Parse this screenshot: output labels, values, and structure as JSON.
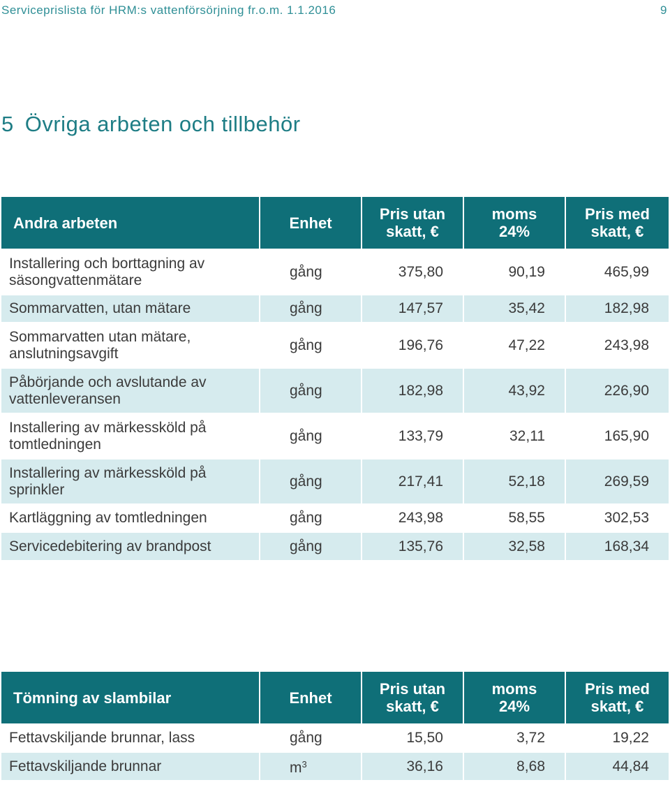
{
  "header": {
    "running_title": "Serviceprislista för HRM:s vattenförsörjning fr.o.m. 1.1.2016",
    "page_number": "9"
  },
  "section": {
    "number": "5",
    "title": "Övriga arbeten och tillbehör"
  },
  "colors": {
    "header_bg": "#0f6f78",
    "row_alt_bg": "#d6ebee",
    "title_color": "#1e7d85"
  },
  "tables": [
    {
      "heading": "Andra arbeten",
      "columns": [
        "Enhet",
        "Pris utan skatt, €",
        "moms 24%",
        "Pris med skatt, €"
      ],
      "rows": [
        {
          "desc": "Installering och borttagning av säsongvattenmätare",
          "unit": "gång",
          "net": "375,80",
          "vat": "90,19",
          "gross": "465,99"
        },
        {
          "desc": "Sommarvatten, utan mätare",
          "unit": "gång",
          "net": "147,57",
          "vat": "35,42",
          "gross": "182,98"
        },
        {
          "desc": "Sommarvatten utan mätare, anslutningsavgift",
          "unit": "gång",
          "net": "196,76",
          "vat": "47,22",
          "gross": "243,98"
        },
        {
          "desc": "Påbörjande och avslutande av vattenleveransen",
          "unit": "gång",
          "net": "182,98",
          "vat": "43,92",
          "gross": "226,90"
        },
        {
          "desc": "Installering av märkessköld på tomtledningen",
          "unit": "gång",
          "net": "133,79",
          "vat": "32,11",
          "gross": "165,90"
        },
        {
          "desc": "Installering av märkessköld på sprinkler",
          "unit": "gång",
          "net": "217,41",
          "vat": "52,18",
          "gross": "269,59"
        },
        {
          "desc": "Kartläggning av tomtledningen",
          "unit": "gång",
          "net": "243,98",
          "vat": "58,55",
          "gross": "302,53"
        },
        {
          "desc": "Servicedebitering av brandpost",
          "unit": "gång",
          "net": "135,76",
          "vat": "32,58",
          "gross": "168,34"
        }
      ]
    },
    {
      "heading": "Tömning av slambilar",
      "columns": [
        "Enhet",
        "Pris utan skatt, €",
        "moms 24%",
        "Pris med skatt, €"
      ],
      "rows": [
        {
          "desc": "Fettavskiljande brunnar, lass",
          "unit": "gång",
          "net": "15,50",
          "vat": "3,72",
          "gross": "19,22"
        },
        {
          "desc": "Fettavskiljande brunnar",
          "unit": "m",
          "unit_sup": "3",
          "net": "36,16",
          "vat": "8,68",
          "gross": "44,84"
        }
      ]
    }
  ]
}
